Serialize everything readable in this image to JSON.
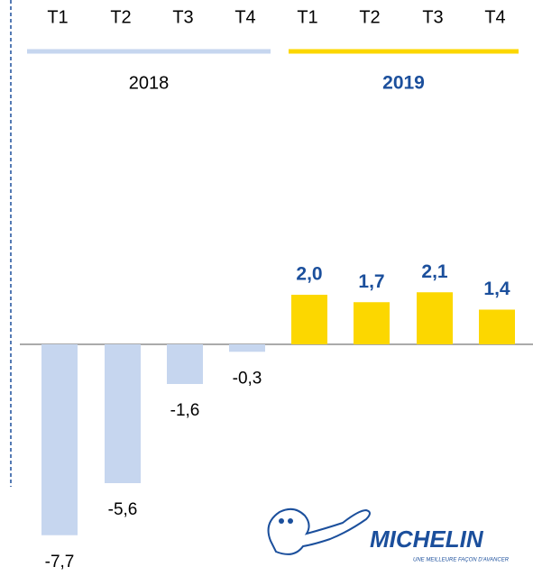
{
  "chart_data": {
    "type": "bar",
    "series": [
      {
        "name": "2018",
        "color": "#c6d6ef",
        "label_color": "#000000",
        "categories": [
          "T1",
          "T2",
          "T3",
          "T4"
        ],
        "values": [
          -7.7,
          -5.6,
          -1.6,
          -0.3
        ],
        "value_labels": [
          "-7,7",
          "-5,6",
          "-1,6",
          "-0,3"
        ]
      },
      {
        "name": "2019",
        "color": "#fcd700",
        "label_color": "#1b4f9c",
        "categories": [
          "T1",
          "T2",
          "T3",
          "T4"
        ],
        "values": [
          2.0,
          1.7,
          2.1,
          1.4
        ],
        "value_labels": [
          "2,0",
          "1,7",
          "2,1",
          "1,4"
        ]
      }
    ],
    "logo": {
      "brand": "MICHELIN",
      "tagline": "UNE MEILLEURE FAÇON D'AVANCER"
    }
  }
}
